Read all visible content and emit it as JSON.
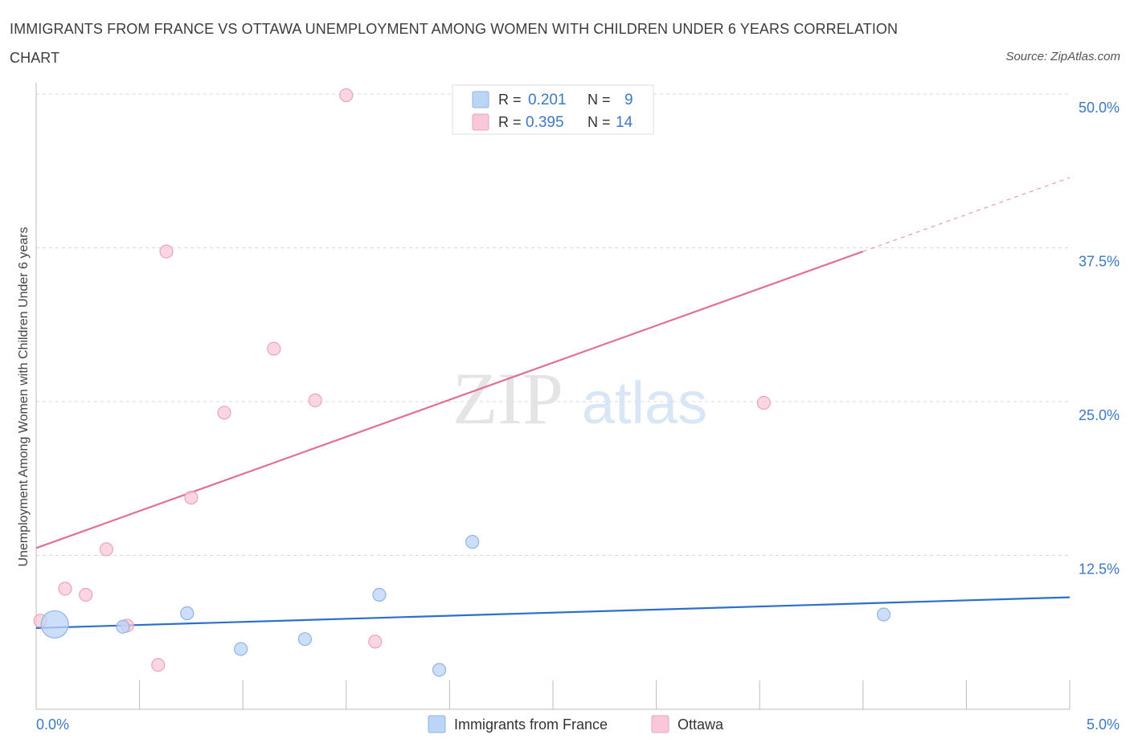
{
  "header": {
    "title": "IMMIGRANTS FROM FRANCE VS OTTAWA UNEMPLOYMENT AMONG WOMEN WITH CHILDREN UNDER 6 YEARS CORRELATION CHART",
    "source": "Source: ZipAtlas.com"
  },
  "watermark": {
    "zip": "ZIP",
    "atlas": "atlas"
  },
  "colors": {
    "blue_fill": "#bcd4f5",
    "blue_stroke": "#8fb3e6",
    "blue_line": "#2e6fcc",
    "pink_fill": "#f8c8d6",
    "pink_stroke": "#eba4bb",
    "pink_line": "#e07097",
    "value_text": "#3d78c7",
    "grid": "#d8d8d8",
    "axis": "#bbbbbb"
  },
  "chart_data": {
    "type": "scatter",
    "title": "IMMIGRANTS FROM FRANCE VS OTTAWA UNEMPLOYMENT AMONG WOMEN WITH CHILDREN UNDER 6 YEARS CORRELATION CHART",
    "xlabel": "",
    "ylabel": "Unemployment Among Women with Children Under 6 years",
    "xlim": [
      0,
      5
    ],
    "ylim": [
      0,
      50
    ],
    "x_tick_labels": [
      {
        "value": 0,
        "label": "0.0%"
      },
      {
        "value": 5,
        "label": "5.0%"
      }
    ],
    "y_tick_labels": [
      {
        "value": 12.5,
        "label": "12.5%"
      },
      {
        "value": 25,
        "label": "25.0%"
      },
      {
        "value": 37.5,
        "label": "37.5%"
      },
      {
        "value": 50,
        "label": "50.0%"
      }
    ],
    "y_gridlines": [
      12.5,
      25,
      37.5,
      50
    ],
    "x_minor_ticks": [
      0.5,
      1.0,
      1.5,
      2.0,
      2.5,
      3.0,
      3.5,
      4.0,
      4.5,
      5.0
    ],
    "legend_position": "bottom",
    "stats_box_position": "top-center",
    "series": [
      {
        "name": "Immigrants from France",
        "color_key": "blue",
        "R": "0.201",
        "N": "9",
        "points": [
          {
            "x": 0.09,
            "y": 6.9,
            "size": "large"
          },
          {
            "x": 0.42,
            "y": 6.7
          },
          {
            "x": 0.73,
            "y": 7.8
          },
          {
            "x": 0.99,
            "y": 4.9
          },
          {
            "x": 1.3,
            "y": 5.7
          },
          {
            "x": 1.66,
            "y": 9.3
          },
          {
            "x": 1.95,
            "y": 3.2
          },
          {
            "x": 2.11,
            "y": 13.6
          },
          {
            "x": 4.1,
            "y": 7.7
          }
        ],
        "trend": {
          "x0": 0,
          "y0": 6.6,
          "x1": 5,
          "y1": 9.1
        }
      },
      {
        "name": "Ottawa",
        "color_key": "pink",
        "R": "0.395",
        "N": "14",
        "points": [
          {
            "x": 0.02,
            "y": 7.2
          },
          {
            "x": 0.14,
            "y": 9.8
          },
          {
            "x": 0.24,
            "y": 9.3
          },
          {
            "x": 0.34,
            "y": 13.0
          },
          {
            "x": 0.44,
            "y": 6.8
          },
          {
            "x": 0.59,
            "y": 3.6
          },
          {
            "x": 0.63,
            "y": 37.2
          },
          {
            "x": 0.75,
            "y": 17.2
          },
          {
            "x": 0.91,
            "y": 24.1
          },
          {
            "x": 1.15,
            "y": 29.3
          },
          {
            "x": 1.35,
            "y": 25.1
          },
          {
            "x": 1.5,
            "y": 49.9
          },
          {
            "x": 1.64,
            "y": 5.5
          },
          {
            "x": 3.52,
            "y": 24.9
          }
        ],
        "trend": {
          "x0": 0,
          "y0": 13.1,
          "x1": 4.0,
          "y1": 37.2
        },
        "trend_extension": {
          "x0": 4.0,
          "y0": 37.2,
          "x1": 5.0,
          "y1": 43.2
        }
      }
    ]
  }
}
